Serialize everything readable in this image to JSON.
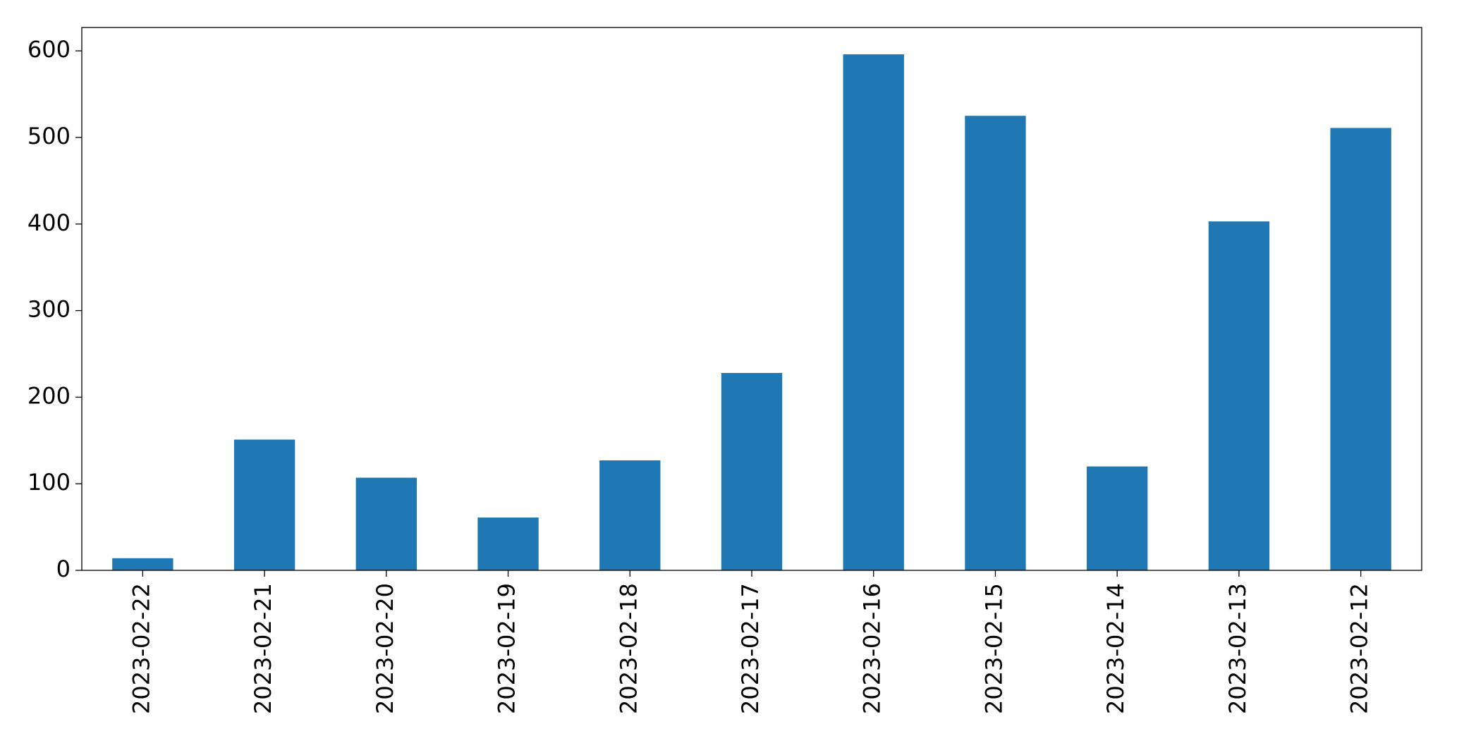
{
  "chart_data": {
    "type": "bar",
    "categories": [
      "2023-02-22",
      "2023-02-21",
      "2023-02-20",
      "2023-02-19",
      "2023-02-18",
      "2023-02-17",
      "2023-02-16",
      "2023-02-15",
      "2023-02-14",
      "2023-02-13",
      "2023-02-12"
    ],
    "values": [
      14,
      151,
      107,
      61,
      127,
      228,
      596,
      525,
      120,
      403,
      511
    ],
    "color": "#1f77b4",
    "ylim": [
      0,
      627
    ],
    "yticks": [
      0,
      100,
      200,
      300,
      400,
      500,
      600
    ],
    "grid": false
  }
}
